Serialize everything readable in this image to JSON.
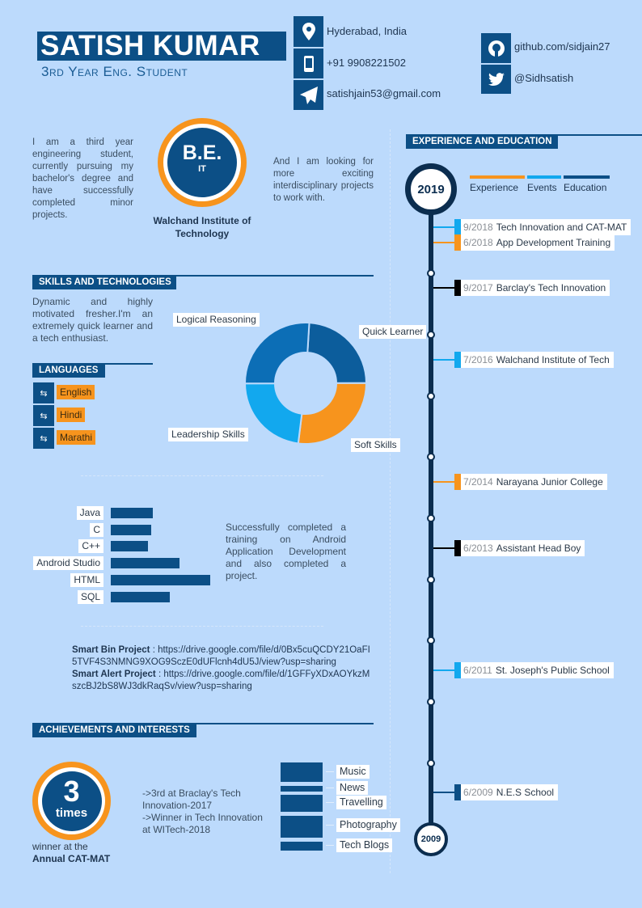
{
  "header": {
    "name": "SATISH KUMAR",
    "subtitle": "3rd Year Eng. Student"
  },
  "contact": [
    {
      "icon": "location-pin-icon",
      "text": "Hyderabad, India"
    },
    {
      "icon": "phone-icon",
      "text": "+91 9908221502"
    },
    {
      "icon": "paper-plane-icon",
      "text": "satishjain53@gmail.com"
    }
  ],
  "social": [
    {
      "icon": "github-icon",
      "text": "github.com/sidjain27"
    },
    {
      "icon": "twitter-icon",
      "text": "@Sidhsatish"
    }
  ],
  "intro": {
    "left": "I am a third year engineering student, currently pursuing my bachelor's degree and have successfully completed minor projects.",
    "right": "And I am looking for more exciting interdisciplinary projects to work with.",
    "degree": "B.E.",
    "branch": "IT",
    "college": "Walchand Institute of Technology"
  },
  "colors": {
    "navy": "#0c4f86",
    "orange": "#f7941d",
    "light_blue": "#12a8ee",
    "dark": "#0b2d4f",
    "background": "#bcdafc"
  },
  "skills": {
    "heading": "SKILLS AND TECHNOLOGIES",
    "description": "Dynamic and highly motivated fresher.I'm an extremely quick learner and a tech enthusiast.",
    "android_note": "Successfully completed a training on Android Application Development and also completed a project."
  },
  "languages": {
    "heading": "LANGUAGES",
    "items": [
      "English",
      "Hindi",
      "Marathi"
    ],
    "icon": "translate-icon"
  },
  "chart_data": [
    {
      "type": "pie",
      "variant": "donut",
      "categories": [
        "Quick Learner",
        "Soft Skills",
        "Leadership Skills",
        "Logical Reasoning"
      ],
      "values": [
        24,
        27,
        23,
        26
      ],
      "colors": [
        "#0c5d9c",
        "#f7941d",
        "#12a8ee",
        "#0c6eb6"
      ]
    },
    {
      "type": "bar",
      "orientation": "horizontal",
      "categories": [
        "Java",
        "C",
        "C++",
        "Android Studio",
        "HTML",
        "SQL"
      ],
      "values": [
        52,
        50,
        46,
        85,
        123,
        73
      ]
    },
    {
      "type": "bar",
      "orientation": "horizontal-stack",
      "categories": [
        "Music",
        "News",
        "Travelling",
        "Photography",
        "Tech Blogs"
      ],
      "values": [
        24,
        7,
        21,
        27,
        11
      ]
    }
  ],
  "projects": [
    {
      "name": "Smart Bin Project",
      "link": " : https://drive.google.com/file/d/0Bx5cuQCDY21OaFI5TVF4S3NMNG9XOG9SczE0dUFlcnh4dU5J/view?usp=sharing"
    },
    {
      "name": "Smart Alert Project",
      "link": " : https://drive.google.com/file/d/1GFFyXDxAOYkzMszcBJ2bS8WJ3dkRaqSv/view?usp=sharing"
    }
  ],
  "achievements": {
    "heading": "ACHIEVEMENTS AND INTERESTS",
    "count": "3",
    "count_unit": "times",
    "caption": "winner at the",
    "caption_bold": "Annual CAT-MAT",
    "list": "->3rd at Braclay's Tech Innovation-2017\n->Winner in Tech Innovation at WITech-2018"
  },
  "timeline": {
    "heading": "EXPERIENCE AND EDUCATION",
    "start_year": "2019",
    "end_year": "2009",
    "legend": [
      {
        "label": "Experience",
        "color": "#f7941d"
      },
      {
        "label": "Events",
        "color": "#12a8ee"
      },
      {
        "label": "Education",
        "color": "#0c4f86"
      }
    ],
    "entries": [
      {
        "date": "9/2018",
        "title": "Tech Innovation and CAT-MAT",
        "color": "#12a8ee"
      },
      {
        "date": "6/2018",
        "title": "App Development Training",
        "color": "#f7941d"
      },
      {
        "date": "9/2017",
        "title": "Barclay's Tech Innovation",
        "color": "#000000"
      },
      {
        "date": "7/2016",
        "title": "Walchand Institute of Tech",
        "color": "#12a8ee"
      },
      {
        "date": "7/2014",
        "title": "Narayana Junior College",
        "color": "#f7941d"
      },
      {
        "date": "6/2013",
        "title": "Assistant Head Boy",
        "color": "#000000"
      },
      {
        "date": "6/2011",
        "title": "St. Joseph's Public School",
        "color": "#12a8ee"
      },
      {
        "date": "6/2009",
        "title": "N.E.S School",
        "color": "#0c4f86"
      }
    ]
  }
}
